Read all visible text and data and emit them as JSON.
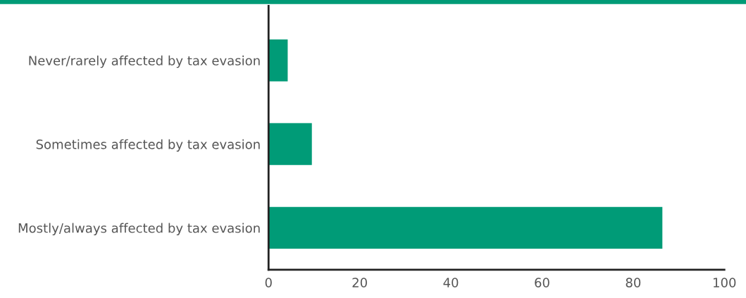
{
  "chart_data": {
    "type": "bar",
    "orientation": "horizontal",
    "categories": [
      "Never/rarely affected by tax evasion",
      "Sometimes affected by tax evasion",
      "Mostly/always affected by tax evasion"
    ],
    "values": [
      4.2,
      9.5,
      86.4
    ],
    "color": "#009b77",
    "xlim": [
      0,
      100
    ],
    "xticks": [
      0,
      20,
      40,
      60,
      80,
      100
    ],
    "grid": false,
    "legend": false
  }
}
